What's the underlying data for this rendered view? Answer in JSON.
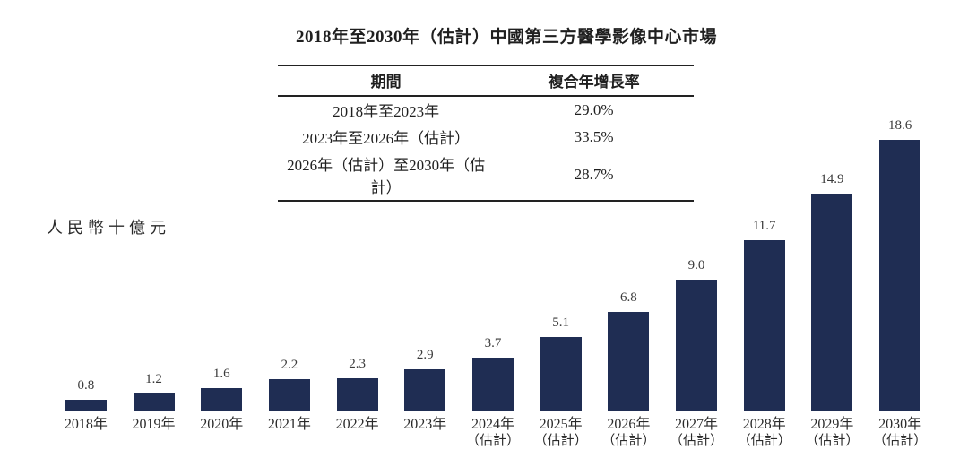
{
  "title": "2018年至2030年（估計）中國第三方醫學影像中心市場",
  "cagr_table": {
    "headers": {
      "period": "期間",
      "cagr": "複合年增長率"
    },
    "rows": [
      {
        "period": "2018年至2023年",
        "cagr": "29.0%"
      },
      {
        "period": "2023年至2026年（估計）",
        "cagr": "33.5%"
      },
      {
        "period": "2026年（估計）至2030年（估計）",
        "cagr": "28.7%"
      }
    ]
  },
  "y_axis_label": "人民幣十億元",
  "colors": {
    "bar": "#1f2d53",
    "axis_line": "#adadad"
  },
  "chart_data": {
    "type": "bar",
    "title": "2018年至2030年（估計）中國第三方醫學影像中心市場",
    "ylabel": "人民幣十億元",
    "xlabel": "",
    "categories": [
      "2018年",
      "2019年",
      "2020年",
      "2021年",
      "2022年",
      "2023年",
      "2024年",
      "2025年",
      "2026年",
      "2027年",
      "2028年",
      "2029年",
      "2030年"
    ],
    "category_notes": [
      "",
      "",
      "",
      "",
      "",
      "",
      "（估計）",
      "（估計）",
      "（估計）",
      "（估計）",
      "（估計）",
      "（估計）",
      "（估計）"
    ],
    "values": [
      0.8,
      1.2,
      1.6,
      2.2,
      2.3,
      2.9,
      3.7,
      5.1,
      6.8,
      9.0,
      11.7,
      14.9,
      18.6
    ],
    "value_labels": [
      "0.8",
      "1.2",
      "1.6",
      "2.2",
      "2.3",
      "2.9",
      "3.7",
      "5.1",
      "6.8",
      "9.0",
      "11.7",
      "14.9",
      "18.6"
    ],
    "ylim": [
      0,
      19
    ],
    "grid": false,
    "legend": "none",
    "bar_color": "#1f2d53",
    "annotations": {
      "cagr_2018_2023": "29.0%",
      "cagr_2023_2026e": "33.5%",
      "cagr_2026e_2030e": "28.7%"
    }
  }
}
